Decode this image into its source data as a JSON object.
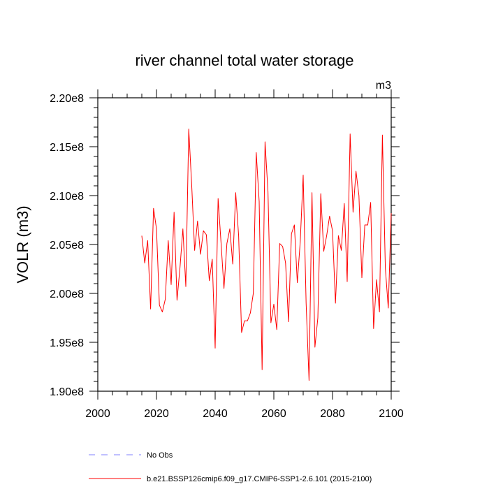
{
  "chart_data": {
    "type": "line",
    "title": "river channel total water storage",
    "units_label": "m3",
    "xlabel": "",
    "ylabel": "VOLR  (m3)",
    "xlim": [
      2000,
      2100
    ],
    "ylim": [
      190000000,
      220000000
    ],
    "x_ticks": [
      2000,
      2020,
      2040,
      2060,
      2080,
      2100
    ],
    "x_tick_labels": [
      "2000",
      "2020",
      "2040",
      "2060",
      "2080",
      "2100"
    ],
    "y_ticks": [
      190000000,
      195000000,
      200000000,
      205000000,
      210000000,
      215000000,
      220000000
    ],
    "y_tick_labels": [
      "1.90e8",
      "1.95e8",
      "2.00e8",
      "2.05e8",
      "2.10e8",
      "2.15e8",
      "2.20e8"
    ],
    "series": [
      {
        "name": "b.e21.BSSP126cmip6.f09_g17.CMIP6-SSP1-2.6.101 (2015-2100)",
        "color": "#ff0000",
        "x": [
          2015,
          2016,
          2017,
          2018,
          2019,
          2020,
          2021,
          2022,
          2023,
          2024,
          2025,
          2026,
          2027,
          2028,
          2029,
          2030,
          2031,
          2032,
          2033,
          2034,
          2035,
          2036,
          2037,
          2038,
          2039,
          2040,
          2041,
          2042,
          2043,
          2044,
          2045,
          2046,
          2047,
          2048,
          2049,
          2050,
          2051,
          2052,
          2053,
          2054,
          2055,
          2056,
          2057,
          2058,
          2059,
          2060,
          2061,
          2062,
          2063,
          2064,
          2065,
          2066,
          2067,
          2068,
          2069,
          2070,
          2071,
          2072,
          2073,
          2074,
          2075,
          2076,
          2077,
          2078,
          2079,
          2080,
          2081,
          2082,
          2083,
          2084,
          2085,
          2086,
          2087,
          2088,
          2089,
          2090,
          2091,
          2092,
          2093,
          2094,
          2095,
          2096,
          2097,
          2098,
          2099,
          2100
        ],
        "values": [
          205900000.0,
          203100000.0,
          205400000.0,
          198400000.0,
          208700000.0,
          206600000.0,
          198800000.0,
          198100000.0,
          199400000.0,
          205400000.0,
          200900000.0,
          208300000.0,
          199300000.0,
          202600000.0,
          206600000.0,
          200700000.0,
          216800000.0,
          211100000.0,
          204400000.0,
          207400000.0,
          204000000.0,
          206400000.0,
          206000000.0,
          201300000.0,
          203500000.0,
          194400000.0,
          209700000.0,
          205200000.0,
          200500000.0,
          205100000.0,
          206600000.0,
          203000000.0,
          210300000.0,
          205900000.0,
          196000000.0,
          197200000.0,
          197200000.0,
          198000000.0,
          200000000.0,
          214400000.0,
          209400000.0,
          192200000.0,
          215500000.0,
          210400000.0,
          197000000.0,
          198900000.0,
          196300000.0,
          205100000.0,
          204800000.0,
          203100000.0,
          197100000.0,
          206100000.0,
          207000000.0,
          201100000.0,
          205300000.0,
          212100000.0,
          199000000.0,
          191100000.0,
          210300000.0,
          194500000.0,
          197500000.0,
          210200000.0,
          204300000.0,
          205900000.0,
          207900000.0,
          206400000.0,
          199000000.0,
          205900000.0,
          204400000.0,
          209200000.0,
          201200000.0,
          216300000.0,
          208300000.0,
          212500000.0,
          210000000.0,
          201600000.0,
          207000000.0,
          207000000.0,
          209300000.0,
          196400000.0,
          201400000.0,
          198100000.0,
          216200000.0,
          202600000.0,
          198500000.0,
          208200000.0
        ]
      }
    ],
    "legend": [
      {
        "label": "No Obs",
        "color": "#8080ff",
        "style": "dashed"
      },
      {
        "label": "b.e21.BSSP126cmip6.f09_g17.CMIP6-SSP1-2.6.101 (2015-2100)",
        "color": "#ff0000",
        "style": "solid"
      }
    ],
    "legend_position": "bottom"
  }
}
